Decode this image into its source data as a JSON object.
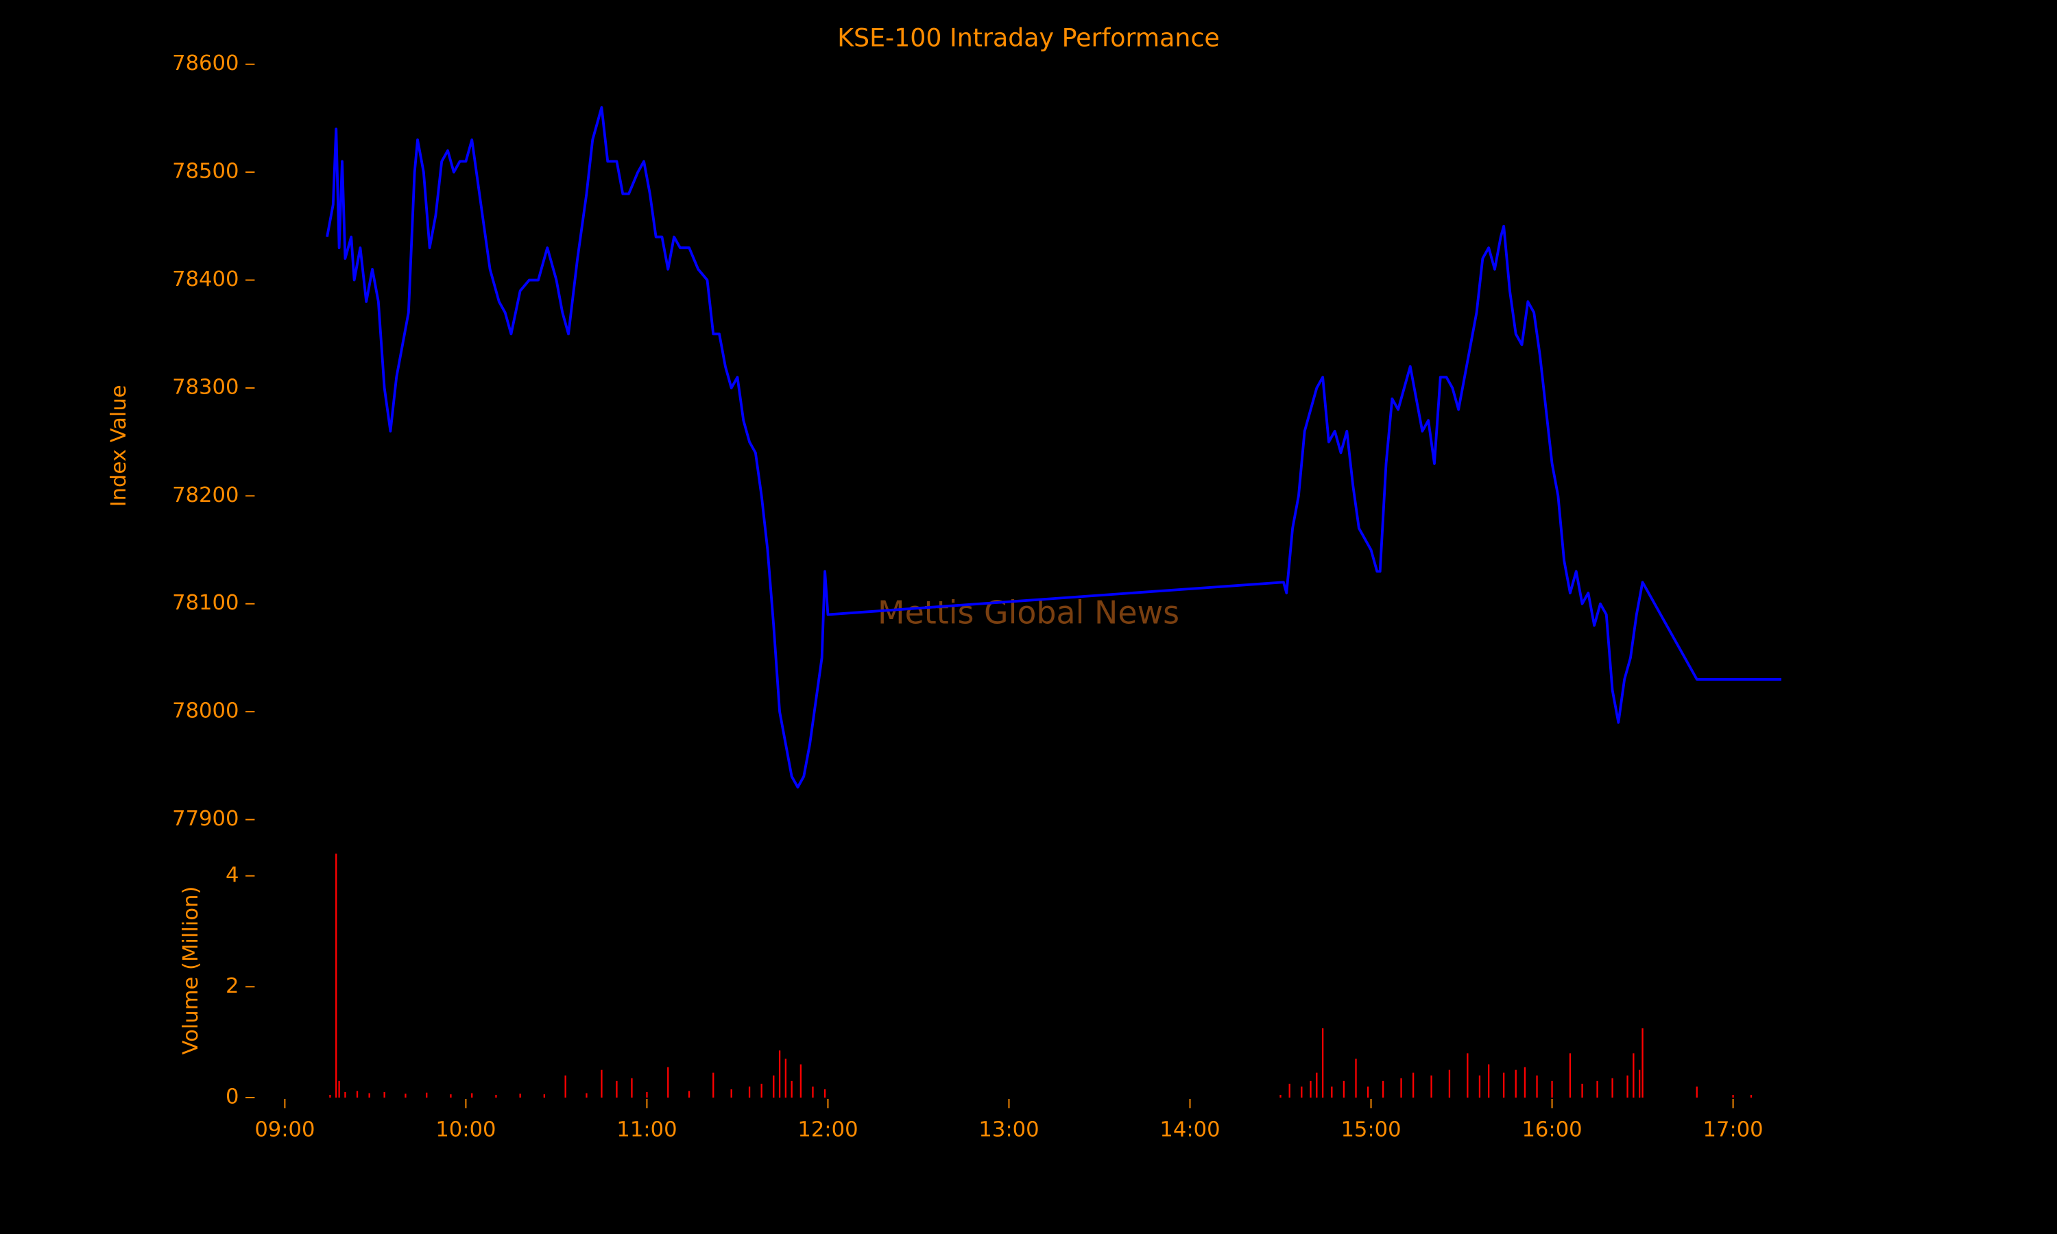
{
  "chart_data": [
    {
      "type": "line",
      "title": "KSE-100 Intraday Performance",
      "ylabel": "Index Value",
      "annotation": "Mettis Global News",
      "color": "#0000ff",
      "xlim": [
        "08:50",
        "17:26"
      ],
      "ylim": [
        77900,
        78600
      ],
      "yticks": [
        77900,
        78000,
        78100,
        78200,
        78300,
        78400,
        78500,
        78600
      ],
      "x": [
        "09:14",
        "09:16",
        "09:17",
        "09:18",
        "09:19",
        "09:20",
        "09:22",
        "09:23",
        "09:25",
        "09:27",
        "09:29",
        "09:31",
        "09:33",
        "09:35",
        "09:37",
        "09:39",
        "09:41",
        "09:43",
        "09:44",
        "09:46",
        "09:48",
        "09:50",
        "09:52",
        "09:54",
        "09:56",
        "09:58",
        "10:00",
        "10:02",
        "10:04",
        "10:06",
        "10:08",
        "10:11",
        "10:13",
        "10:15",
        "10:18",
        "10:21",
        "10:24",
        "10:27",
        "10:30",
        "10:32",
        "10:34",
        "10:37",
        "10:40",
        "10:42",
        "10:44",
        "10:45",
        "10:47",
        "10:50",
        "10:52",
        "10:54",
        "10:57",
        "10:59",
        "11:01",
        "11:03",
        "11:05",
        "11:07",
        "11:09",
        "11:11",
        "11:14",
        "11:17",
        "11:20",
        "11:22",
        "11:24",
        "11:26",
        "11:28",
        "11:30",
        "11:32",
        "11:34",
        "11:36",
        "11:38",
        "11:40",
        "11:42",
        "11:44",
        "11:46",
        "11:48",
        "11:50",
        "11:52",
        "11:54",
        "11:56",
        "11:58",
        "11:59",
        "12:00",
        "14:31",
        "14:32",
        "14:34",
        "14:36",
        "14:38",
        "14:40",
        "14:42",
        "14:44",
        "14:46",
        "14:48",
        "14:50",
        "14:52",
        "14:54",
        "14:56",
        "14:58",
        "15:00",
        "15:02",
        "15:03",
        "15:05",
        "15:07",
        "15:09",
        "15:11",
        "15:13",
        "15:15",
        "15:17",
        "15:19",
        "15:21",
        "15:23",
        "15:25",
        "15:27",
        "15:29",
        "15:31",
        "15:33",
        "15:35",
        "15:37",
        "15:39",
        "15:41",
        "15:43",
        "15:44",
        "15:46",
        "15:48",
        "15:50",
        "15:52",
        "15:54",
        "15:56",
        "15:58",
        "16:00",
        "16:02",
        "16:04",
        "16:06",
        "16:08",
        "16:10",
        "16:12",
        "16:14",
        "16:16",
        "16:18",
        "16:20",
        "16:22",
        "16:24",
        "16:26",
        "16:28",
        "16:30",
        "16:48",
        "17:16"
      ],
      "values": [
        78440,
        78470,
        78540,
        78430,
        78510,
        78420,
        78440,
        78400,
        78430,
        78380,
        78410,
        78380,
        78300,
        78260,
        78310,
        78340,
        78370,
        78500,
        78530,
        78500,
        78430,
        78460,
        78510,
        78520,
        78500,
        78510,
        78510,
        78530,
        78490,
        78450,
        78410,
        78380,
        78370,
        78350,
        78390,
        78400,
        78400,
        78430,
        78400,
        78370,
        78350,
        78420,
        78480,
        78530,
        78550,
        78560,
        78510,
        78510,
        78480,
        78480,
        78500,
        78510,
        78480,
        78440,
        78440,
        78410,
        78440,
        78430,
        78430,
        78410,
        78400,
        78350,
        78350,
        78320,
        78300,
        78310,
        78270,
        78250,
        78240,
        78200,
        78150,
        78080,
        78000,
        77970,
        77940,
        77930,
        77940,
        77970,
        78010,
        78050,
        78130,
        78090,
        78120,
        78110,
        78170,
        78200,
        78260,
        78280,
        78300,
        78310,
        78250,
        78260,
        78240,
        78260,
        78210,
        78170,
        78160,
        78150,
        78130,
        78130,
        78230,
        78290,
        78280,
        78300,
        78320,
        78290,
        78260,
        78270,
        78230,
        78310,
        78310,
        78300,
        78280,
        78310,
        78340,
        78370,
        78420,
        78430,
        78410,
        78440,
        78450,
        78390,
        78350,
        78340,
        78380,
        78370,
        78330,
        78280,
        78230,
        78200,
        78140,
        78110,
        78130,
        78100,
        78110,
        78080,
        78100,
        78090,
        78020,
        77990,
        78030,
        78050,
        78090,
        78120,
        78030,
        78030
      ]
    },
    {
      "type": "bar",
      "ylabel": "Volume (Million)",
      "color": "#ff0000",
      "xlim": [
        "08:50",
        "17:26"
      ],
      "ylim": [
        0,
        4.4
      ],
      "yticks": [
        0,
        2,
        4
      ],
      "xticks": [
        "09:00",
        "10:00",
        "11:00",
        "12:00",
        "13:00",
        "14:00",
        "15:00",
        "16:00",
        "17:00"
      ],
      "x": [
        "09:15",
        "09:17",
        "09:18",
        "09:20",
        "09:24",
        "09:28",
        "09:33",
        "09:40",
        "09:47",
        "09:55",
        "10:02",
        "10:10",
        "10:18",
        "10:26",
        "10:33",
        "10:40",
        "10:45",
        "10:50",
        "10:55",
        "11:00",
        "11:07",
        "11:14",
        "11:22",
        "11:28",
        "11:34",
        "11:38",
        "11:42",
        "11:44",
        "11:46",
        "11:48",
        "11:51",
        "11:55",
        "11:59",
        "14:30",
        "14:33",
        "14:37",
        "14:40",
        "14:42",
        "14:44",
        "14:47",
        "14:51",
        "14:55",
        "14:59",
        "15:04",
        "15:10",
        "15:14",
        "15:20",
        "15:26",
        "15:32",
        "15:36",
        "15:39",
        "15:44",
        "15:48",
        "15:51",
        "15:55",
        "16:00",
        "16:06",
        "16:10",
        "16:15",
        "16:20",
        "16:25",
        "16:27",
        "16:29",
        "16:30",
        "16:48",
        "17:00",
        "17:06"
      ],
      "values": [
        0.05,
        4.4,
        0.3,
        0.1,
        0.12,
        0.08,
        0.1,
        0.07,
        0.09,
        0.06,
        0.08,
        0.05,
        0.07,
        0.06,
        0.4,
        0.08,
        0.5,
        0.3,
        0.35,
        0.1,
        0.55,
        0.12,
        0.45,
        0.15,
        0.2,
        0.25,
        0.4,
        0.85,
        0.7,
        0.3,
        0.6,
        0.2,
        0.15,
        0.05,
        0.25,
        0.2,
        0.3,
        0.45,
        1.25,
        0.2,
        0.3,
        0.7,
        0.2,
        0.3,
        0.35,
        0.45,
        0.4,
        0.5,
        0.8,
        0.4,
        0.6,
        0.45,
        0.5,
        0.55,
        0.4,
        0.3,
        0.8,
        0.25,
        0.3,
        0.35,
        0.4,
        0.8,
        0.5,
        1.25,
        0.2,
        0.05,
        0.05
      ]
    }
  ]
}
